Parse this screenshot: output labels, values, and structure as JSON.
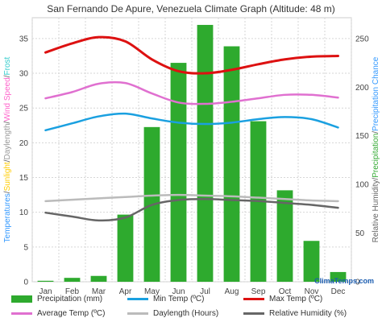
{
  "chart_data": {
    "type": "bar+line",
    "title": "San Fernando De Apure, Venezuela Climate Graph (Altitude: 48 m)",
    "categories": [
      "Jan",
      "Feb",
      "Mar",
      "Apr",
      "May",
      "Jun",
      "Jul",
      "Aug",
      "Sep",
      "Oct",
      "Nov",
      "Dec"
    ],
    "left_axis": {
      "label_parts": [
        {
          "text": "Temperatures",
          "color": "#3399ff"
        },
        {
          "text": "/",
          "color": "#555555"
        },
        {
          "text": "Sunlight",
          "color": "#ffcc00"
        },
        {
          "text": "/",
          "color": "#555555"
        },
        {
          "text": "Daylength",
          "color": "#999999"
        },
        {
          "text": "/",
          "color": "#555555"
        },
        {
          "text": "Wind Speed",
          "color": "#ff66cc"
        },
        {
          "text": "/",
          "color": "#555555"
        },
        {
          "text": "Frost",
          "color": "#33cccc"
        }
      ],
      "ticks": [
        "0",
        "5",
        "10",
        "15",
        "20",
        "25",
        "30",
        "35"
      ],
      "ylim": [
        0,
        38
      ]
    },
    "right_axis": {
      "label_parts": [
        {
          "text": "Relative Humidity",
          "color": "#666666"
        },
        {
          "text": "/",
          "color": "#555555"
        },
        {
          "text": "Precipitation",
          "color": "#33aa33"
        },
        {
          "text": "/",
          "color": "#555555"
        },
        {
          "text": "Precipitation Chance",
          "color": "#3399ff"
        }
      ],
      "ticks": [
        "0",
        "50",
        "100",
        "150",
        "200",
        "250"
      ],
      "ylim": [
        0,
        271.4
      ]
    },
    "grid": true,
    "series": [
      {
        "name": "Precipitation (mm)",
        "kind": "bar",
        "axis": "right",
        "color": "#2eaa2e",
        "values": [
          1,
          4,
          6,
          69,
          159,
          225,
          264,
          242,
          165,
          94,
          42,
          10
        ]
      },
      {
        "name": "Min Temp (ºC)",
        "kind": "line",
        "axis": "left",
        "color": "#1aa0e0",
        "values": [
          21.8,
          22.8,
          23.8,
          24.2,
          23.5,
          22.9,
          22.7,
          22.9,
          23.4,
          23.7,
          23.4,
          22.2
        ]
      },
      {
        "name": "Max Temp (ºC)",
        "kind": "line",
        "axis": "left",
        "color": "#dd1111",
        "values": [
          33.0,
          34.3,
          35.2,
          34.6,
          32.0,
          30.3,
          30.0,
          30.5,
          31.3,
          32.0,
          32.4,
          32.5
        ]
      },
      {
        "name": "Average Temp (ºC)",
        "kind": "line",
        "axis": "left",
        "color": "#e070d0",
        "values": [
          26.4,
          27.3,
          28.5,
          28.6,
          27.1,
          25.8,
          25.6,
          25.9,
          26.4,
          26.9,
          26.9,
          26.5
        ]
      },
      {
        "name": "Daylength (Hours)",
        "kind": "line",
        "axis": "left",
        "color": "#bbbbbb",
        "values": [
          11.6,
          11.8,
          12.0,
          12.2,
          12.4,
          12.5,
          12.4,
          12.3,
          12.1,
          11.9,
          11.7,
          11.6
        ]
      },
      {
        "name": "Relative Humidity (%)",
        "kind": "line",
        "axis": "right",
        "color": "#666666",
        "values": [
          71,
          67,
          63,
          66,
          79,
          84,
          85,
          84,
          83,
          81,
          79,
          76
        ]
      }
    ],
    "credit": "ClimaTemps.com"
  }
}
